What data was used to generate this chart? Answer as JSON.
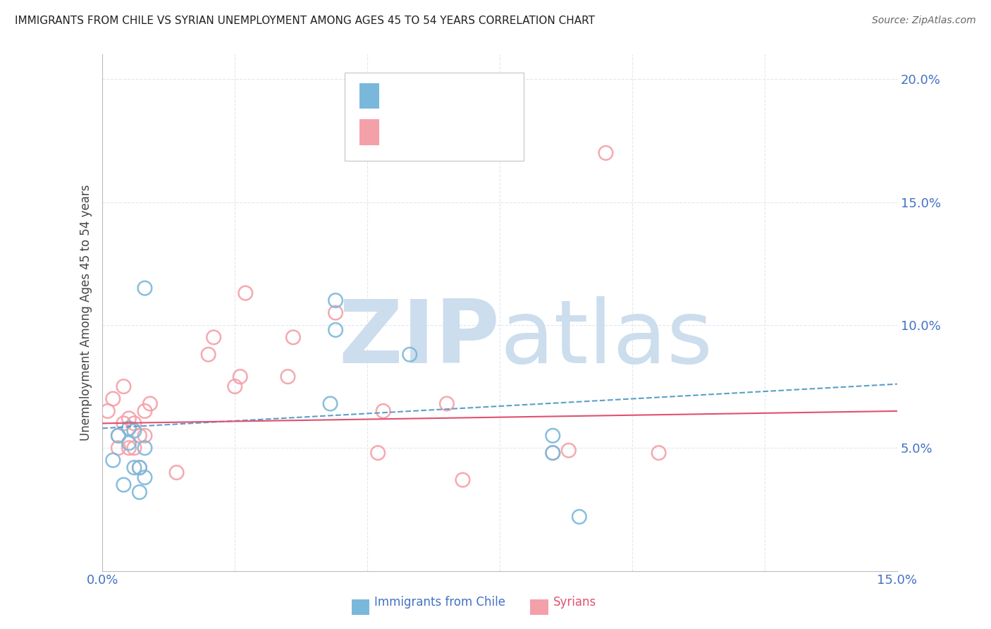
{
  "title": "IMMIGRANTS FROM CHILE VS SYRIAN UNEMPLOYMENT AMONG AGES 45 TO 54 YEARS CORRELATION CHART",
  "source": "Source: ZipAtlas.com",
  "ylabel": "Unemployment Among Ages 45 to 54 years",
  "xlim": [
    0.0,
    0.15
  ],
  "ylim": [
    0.0,
    0.21
  ],
  "xticks": [
    0.0,
    0.025,
    0.05,
    0.075,
    0.1,
    0.125,
    0.15
  ],
  "xticklabels": [
    "0.0%",
    "",
    "",
    "",
    "",
    "",
    "15.0%"
  ],
  "yticks": [
    0.0,
    0.05,
    0.1,
    0.15,
    0.2
  ],
  "yticklabels": [
    "",
    "5.0%",
    "10.0%",
    "15.0%",
    "20.0%"
  ],
  "color_chile": "#7ab8db",
  "color_syria": "#f4a0a8",
  "color_chile_line": "#5b9fc8",
  "color_syria_line": "#e05070",
  "watermark_zip": "ZIP",
  "watermark_atlas": "atlas",
  "watermark_color": "#ccdded",
  "chile_scatter_x": [
    0.002,
    0.003,
    0.004,
    0.005,
    0.005,
    0.006,
    0.006,
    0.007,
    0.007,
    0.008,
    0.008,
    0.008,
    0.043,
    0.044,
    0.044,
    0.058,
    0.085,
    0.085,
    0.09
  ],
  "chile_scatter_y": [
    0.045,
    0.055,
    0.035,
    0.052,
    0.058,
    0.057,
    0.042,
    0.032,
    0.042,
    0.038,
    0.05,
    0.115,
    0.068,
    0.11,
    0.098,
    0.088,
    0.048,
    0.055,
    0.022
  ],
  "syria_scatter_x": [
    0.001,
    0.002,
    0.003,
    0.003,
    0.004,
    0.004,
    0.005,
    0.005,
    0.006,
    0.006,
    0.007,
    0.007,
    0.008,
    0.008,
    0.009,
    0.014,
    0.02,
    0.021,
    0.025,
    0.026,
    0.027,
    0.035,
    0.036,
    0.044,
    0.052,
    0.053,
    0.065,
    0.068,
    0.085,
    0.088,
    0.095,
    0.105
  ],
  "syria_scatter_y": [
    0.065,
    0.07,
    0.05,
    0.055,
    0.06,
    0.075,
    0.05,
    0.062,
    0.05,
    0.06,
    0.042,
    0.055,
    0.055,
    0.065,
    0.068,
    0.04,
    0.088,
    0.095,
    0.075,
    0.079,
    0.113,
    0.079,
    0.095,
    0.105,
    0.048,
    0.065,
    0.068,
    0.037,
    0.048,
    0.049,
    0.17,
    0.048
  ],
  "chile_trend_x": [
    0.0,
    0.15
  ],
  "chile_trend_y": [
    0.058,
    0.076
  ],
  "syria_trend_x": [
    0.0,
    0.15
  ],
  "syria_trend_y": [
    0.06,
    0.065
  ],
  "background_color": "#ffffff",
  "grid_color": "#e0e8f0",
  "tick_color": "#4472c4"
}
